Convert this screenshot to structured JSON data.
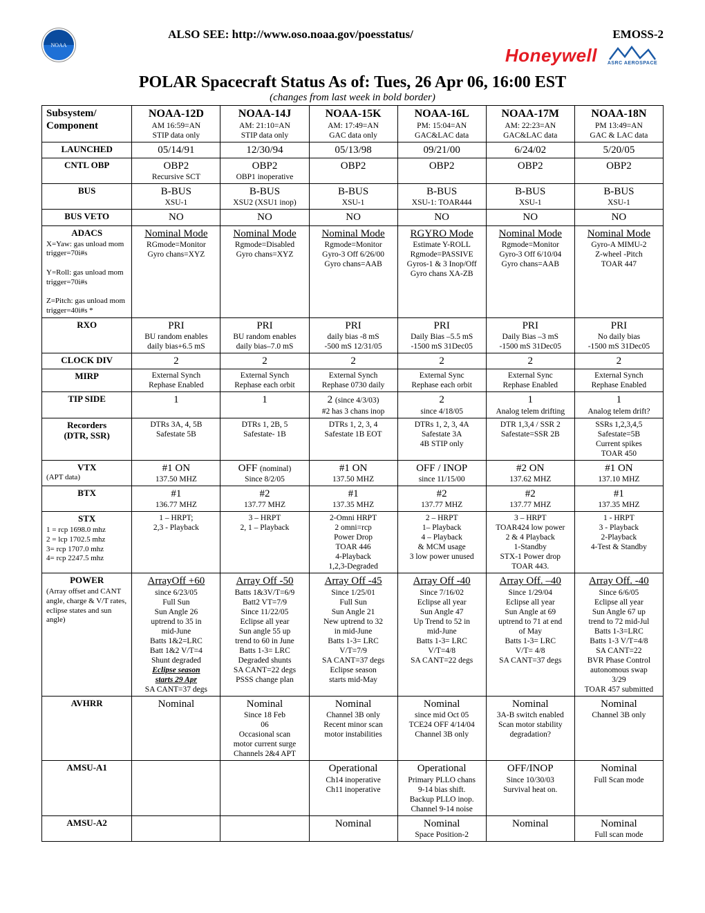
{
  "header": {
    "also_see": "ALSO SEE: http://www.oso.noaa.gov/poesstatus/",
    "emoss": "EMOSS-2",
    "honeywell": "Honeywell",
    "asrc": "ASRC AEROSPACE",
    "noaa": "NOAA"
  },
  "title": "POLAR Spacecraft Status As of: Tues, 26 Apr 06, 16:00 EST",
  "subtitle": "(changes from last week in bold border)",
  "columns": [
    {
      "head": "Subsystem/\nComponent"
    },
    {
      "head": "NOAA-12D",
      "sub1": "AM 16:59=AN",
      "sub2": "STIP data only"
    },
    {
      "head": "NOAA-14J",
      "sub1": "AM: 21:10=AN",
      "sub2": "STIP data only"
    },
    {
      "head": "NOAA-15K",
      "sub1": "AM: 17:49=AN",
      "sub2": "GAC data only"
    },
    {
      "head": "NOAA-16L",
      "sub1": "PM: 15:04=AN",
      "sub2": "GAC&LAC data"
    },
    {
      "head": "NOAA-17M",
      "sub1": "AM: 22:23=AN",
      "sub2": "GAC&LAC data"
    },
    {
      "head": "NOAA-18N",
      "sub1": "PM 13:49=AN",
      "sub2": "GAC & LAC data"
    }
  ],
  "rows": {
    "launched": {
      "label": "LAUNCHED",
      "v": [
        "05/14/91",
        "12/30/94",
        "05/13/98",
        "09/21/00",
        "6/24/02",
        "5/20/05"
      ]
    },
    "cntlobp": {
      "label": "CNTL OBP",
      "cells": [
        {
          "main": "OBP2",
          "sub": "Recursive SCT"
        },
        {
          "main": "OBP2",
          "sub": "OBP1 inoperative"
        },
        {
          "main": "OBP2"
        },
        {
          "main": "OBP2"
        },
        {
          "main": "OBP2"
        },
        {
          "main": "OBP2"
        }
      ]
    },
    "bus": {
      "label": "BUS",
      "cells": [
        {
          "main": "B-BUS",
          "sub": "XSU-1"
        },
        {
          "main": "B-BUS",
          "sub": "XSU2 (XSU1 inop)"
        },
        {
          "main": "B-BUS",
          "sub": "XSU-1"
        },
        {
          "main": "B-BUS",
          "sub": "XSU-1: TOAR444"
        },
        {
          "main": "B-BUS",
          "sub": "XSU-1"
        },
        {
          "main": "B-BUS",
          "sub": "XSU-1"
        }
      ]
    },
    "busveto": {
      "label": "BUS VETO",
      "v": [
        "NO",
        "NO",
        "NO",
        "NO",
        "NO",
        "NO"
      ]
    },
    "adacs": {
      "label": "ADACS",
      "labelsub": "X=Yaw: gas unload mom trigger=70i#s\n\nY=Roll: gas unload mom trigger=70i#s\n\nZ=Pitch: gas unload mom trigger=40i#s *",
      "cells": [
        {
          "main": "Nominal Mode",
          "u": true,
          "lines": [
            "RGmode=Monitor",
            "Gyro chans=XYZ"
          ]
        },
        {
          "main": "Nominal Mode",
          "u": true,
          "lines": [
            "Rgmode=Disabled",
            "Gyro chans=XYZ"
          ]
        },
        {
          "main": "Nominal Mode",
          "u": true,
          "lines": [
            "Rgmode=Monitor",
            "Gyro-3 Off 6/26/00",
            "Gyro chans=AAB"
          ]
        },
        {
          "main": "RGYRO Mode",
          "u": true,
          "lines": [
            "Estimate Y-ROLL",
            "Rgmode=PASSIVE",
            "Gyros-1 & 3 Inop/Off",
            "Gyro chans XA-ZB"
          ]
        },
        {
          "main": "Nominal Mode",
          "u": true,
          "lines": [
            "Rgmode=Monitor",
            "Gyro-3 Off 6/10/04",
            "Gyro chans=AAB"
          ]
        },
        {
          "main": "Nominal Mode",
          "u": true,
          "lines": [
            "Gyro-A  MIMU-2",
            "Z-wheel -Pitch",
            "TOAR 447"
          ]
        }
      ]
    },
    "rxo": {
      "label": "RXO",
      "cells": [
        {
          "main": "PRI",
          "lines": [
            "BU random enables",
            "daily bias+6.5 mS"
          ]
        },
        {
          "main": "PRI",
          "lines": [
            "BU random enables",
            "daily bias–7.0 mS"
          ]
        },
        {
          "main": "PRI",
          "lines": [
            "daily bias -8 mS",
            "-500 mS  12/31/05"
          ]
        },
        {
          "main": "PRI",
          "lines": [
            "Daily Bias –5.5 mS",
            "-1500 mS  31Dec05"
          ]
        },
        {
          "main": "PRI",
          "lines": [
            "Daily Bias –3 mS",
            "-1500 mS  31Dec05"
          ]
        },
        {
          "main": "PRI",
          "lines": [
            "No daily bias",
            "-1500 mS  31Dec05"
          ]
        }
      ]
    },
    "clockdiv": {
      "label": "CLOCK DIV",
      "v": [
        "2",
        "2",
        "2",
        "2",
        "2",
        "2"
      ]
    },
    "mirp": {
      "label": "MIRP",
      "cells": [
        {
          "lines": [
            "External Synch",
            "Rephase Enabled"
          ]
        },
        {
          "lines": [
            "External Synch",
            "Rephase each orbit"
          ]
        },
        {
          "lines": [
            "External Synch",
            "Rephase 0730 daily"
          ]
        },
        {
          "lines": [
            "External Sync",
            "Rephase each orbit"
          ]
        },
        {
          "lines": [
            "External Sync",
            "Rephase Enabled"
          ]
        },
        {
          "lines": [
            "External Synch",
            "Rephase Enabled"
          ]
        }
      ]
    },
    "tipside": {
      "label": "TIP SIDE",
      "cells": [
        {
          "main": "1"
        },
        {
          "main": "1"
        },
        {
          "main": "2  ",
          "after": "(since 4/3/03)",
          "lines": [
            "#2 has 3 chans inop"
          ]
        },
        {
          "main": "2",
          "lines": [
            "since 4/18/05"
          ]
        },
        {
          "main": "1",
          "lines": [
            "Analog telem drifting"
          ]
        },
        {
          "main": "1",
          "lines": [
            "Analog telem drift?"
          ]
        }
      ]
    },
    "recorders": {
      "label": "Recorders",
      "label2": "(DTR, SSR)",
      "cells": [
        {
          "lines": [
            "DTRs 3A, 4, 5B",
            "Safestate 5B"
          ]
        },
        {
          "lines": [
            "DTRs 1, 2B, 5",
            "Safestate- 1B"
          ]
        },
        {
          "lines": [
            "DTRs 1, 2, 3, 4",
            "Safestate 1B EOT"
          ]
        },
        {
          "lines": [
            "DTRs 1, 2, 3, 4A",
            "Safestate 3A",
            "4B STIP only"
          ]
        },
        {
          "lines": [
            "DTR 1,3,4 / SSR 2",
            "Safestate=SSR 2B"
          ]
        },
        {
          "lines": [
            "SSRs 1,2,3,4,5",
            "Safestate=5B",
            "Current spikes",
            "TOAR 450"
          ]
        }
      ]
    },
    "vtx": {
      "label": "VTX",
      "labelsub2": "(APT data)",
      "cells": [
        {
          "main": "#1 ON",
          "lines": [
            "137.50 MHZ"
          ]
        },
        {
          "main": "OFF ",
          "after": "(nominal)",
          "lines": [
            "Since 8/2/05"
          ]
        },
        {
          "main": "#1 ON",
          "lines": [
            "137.50 MHZ"
          ]
        },
        {
          "main": "OFF / INOP",
          "lines": [
            "since 11/15/00"
          ]
        },
        {
          "main": "#2 ON",
          "lines": [
            "137.62 MHZ"
          ]
        },
        {
          "main": "#1 ON",
          "lines": [
            "137.10 MHZ"
          ]
        }
      ]
    },
    "btx": {
      "label": "BTX",
      "cells": [
        {
          "main": "#1",
          "lines": [
            "136.77 MHZ"
          ]
        },
        {
          "main": "#2",
          "lines": [
            "137.77 MHZ"
          ]
        },
        {
          "main": "#1",
          "lines": [
            "137.35 MHZ"
          ]
        },
        {
          "main": "#2",
          "lines": [
            "137.77 MHZ"
          ]
        },
        {
          "main": "#2",
          "lines": [
            "137.77 MHZ"
          ]
        },
        {
          "main": "#1",
          "lines": [
            "137.35 MHZ"
          ]
        }
      ]
    },
    "stx": {
      "label": "STX",
      "labelsub": "1 = rcp 1698.0 mhz\n2 = lcp 1702.5 mhz\n3= rcp 1707.0 mhz\n4= rcp 2247.5 mhz",
      "cells": [
        {
          "lines": [
            "1 – HRPT;",
            "2,3 - Playback"
          ]
        },
        {
          "lines": [
            "3 – HRPT",
            "2, 1 – Playback"
          ]
        },
        {
          "lines": [
            "2-Omni HRPT",
            "2 omni=rcp",
            "Power Drop",
            "TOAR 446",
            "4-Playback",
            "1,2,3-Degraded"
          ]
        },
        {
          "lines": [
            "2 – HRPT",
            "",
            "1– Playback",
            "4 – Playback",
            "& MCM usage",
            "3 low power unused"
          ]
        },
        {
          "lines": [
            "3 – HRPT",
            "TOAR424 low power",
            "2 & 4 Playback",
            "1-Standby",
            "STX-1 Power drop",
            "TOAR 443."
          ]
        },
        {
          "lines": [
            "1 - HRPT",
            "",
            "3 - Playback",
            "",
            "2-Playback",
            "4-Test & Standby"
          ]
        }
      ]
    },
    "power": {
      "label": "POWER",
      "labelsub": "(Array offset and CANT angle, charge & V/T rates, eclipse states and sun angle)",
      "cells": [
        {
          "main": "ArrayOff +60",
          "u": true,
          "lines": [
            "since 6/23/05",
            "Full Sun",
            "",
            "Sun Angle 26",
            "uptrend to 35 in",
            "mid-June",
            "Batts 1&2=LRC",
            "Batt 1&2 V/T=4",
            "Shunt degraded",
            "<biu>Eclipse season",
            "<biu>starts 29 Apr",
            "SA CANT=37 degs"
          ]
        },
        {
          "main": "Array Off -50",
          "u": true,
          "lines": [
            "Batts 1&3V/T=6/9",
            "Batt2 VT=7/9",
            "Since 11/22/05",
            "",
            "Eclipse all year",
            "Sun angle 55 up",
            "trend to 60 in June",
            "",
            "Batts 1-3= LRC",
            "Degraded shunts",
            "SA CANT=22 degs",
            "PSSS change plan"
          ]
        },
        {
          "main": "Array Off  -45",
          "u": true,
          "lines": [
            "Since 1/25/01",
            "Full Sun",
            "",
            "Sun Angle 21",
            "New uptrend to 32",
            "in mid-June",
            "",
            "Batts 1-3= LRC",
            "V/T=7/9",
            "SA CANT=37 degs",
            "Eclipse season",
            "starts mid-May"
          ]
        },
        {
          "main": "Array  Off -40",
          "u": true,
          "lines": [
            "Since 7/16/02",
            "Eclipse all year",
            "",
            "Sun Angle 47",
            "Up Trend to 52 in",
            "mid-June",
            "",
            "Batts 1-3= LRC",
            "V/T=4/8",
            "SA CANT=22 degs"
          ]
        },
        {
          "main": "Array Off. –40",
          "u": true,
          "lines": [
            "Since 1/29/04",
            "Eclipse all year",
            "Sun Angle at 69",
            "uptrend to 71 at end",
            "of May",
            "",
            "Batts 1-3= LRC",
            "V/T= 4/8",
            "SA CANT=37 degs"
          ]
        },
        {
          "main": "Array Off. -40",
          "u": true,
          "lines": [
            "Since 6/6/05",
            "Eclipse all year",
            "Sun Angle 67 up",
            "trend to 72 mid-Jul",
            "Batts 1-3=LRC",
            "Batts 1-3 V/T=4/8",
            "SA CANT=22",
            "",
            "BVR Phase Control",
            "autonomous swap",
            "3/29",
            "TOAR 457 submitted"
          ]
        }
      ]
    },
    "avhrr": {
      "label": "AVHRR",
      "cells": [
        {
          "main": "Nominal"
        },
        {
          "main": "Nominal",
          "lines": [
            "Since 18 Feb",
            "06",
            "Occasional scan",
            "motor current surge",
            "Channels 2&4 APT"
          ]
        },
        {
          "main": "Nominal",
          "lines": [
            "Channel 3B only",
            "Recent minor scan",
            "motor instabilities"
          ]
        },
        {
          "main": "Nominal",
          "lines": [
            "since mid Oct 05",
            "TCE24 OFF 4/14/04",
            "Channel 3B only"
          ]
        },
        {
          "main": "Nominal",
          "lines": [
            "3A-B switch enabled",
            "Scan motor stability",
            "degradation?"
          ]
        },
        {
          "main": "Nominal",
          "lines": [
            "Channel 3B only"
          ]
        }
      ]
    },
    "amsua1": {
      "label": "AMSU-A1",
      "cells": [
        {},
        {},
        {
          "main": "Operational",
          "lines": [
            "Ch14 inoperative",
            "Ch11 inoperative"
          ]
        },
        {
          "main": "Operational",
          "lines": [
            "Primary PLLO chans",
            "9-14 bias shift.",
            "Backup PLLO inop.",
            "Channel 9-14 noise"
          ]
        },
        {
          "main": "OFF/INOP",
          "lines": [
            "Since 10/30/03",
            "Survival heat on."
          ]
        },
        {
          "main": "Nominal",
          "lines": [
            "Full Scan mode"
          ]
        }
      ]
    },
    "amsua2": {
      "label": "AMSU-A2",
      "cells": [
        {},
        {},
        {
          "main": "Nominal"
        },
        {
          "main": "Nominal",
          "lines": [
            "Space Position-2"
          ]
        },
        {
          "main": "Nominal"
        },
        {
          "main": "Nominal",
          "lines": [
            "Full scan mode"
          ]
        }
      ]
    }
  }
}
